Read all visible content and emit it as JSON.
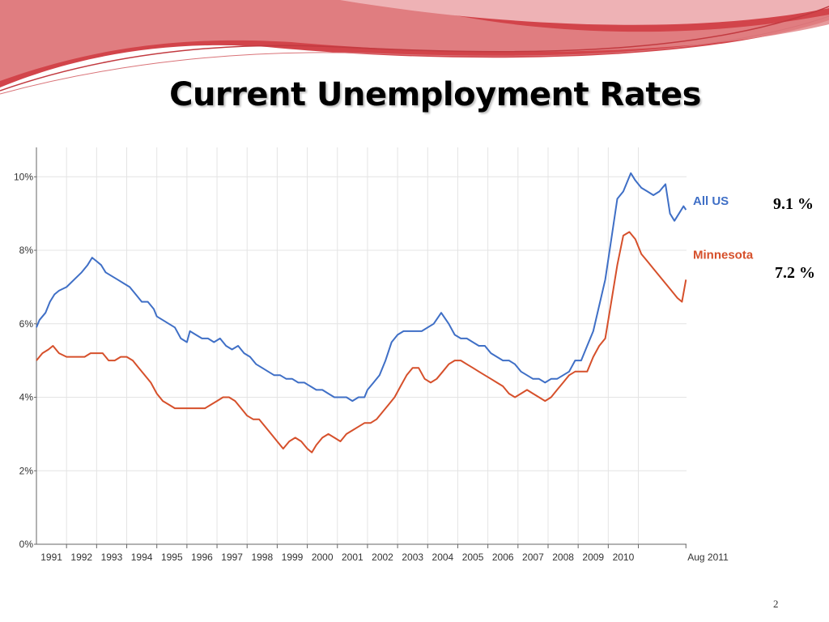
{
  "slide": {
    "title": "Current Unemployment Rates",
    "page_number": "2",
    "callouts": {
      "all_us": "9.1 %",
      "minnesota": "7.2 %"
    }
  },
  "colors": {
    "all_us": "#3f6fc6",
    "minnesota": "#d6502b",
    "banner_dark": "#d2444a",
    "banner_light": "#eeb2b5",
    "grid": "#e4e4e4"
  },
  "chart_data": {
    "type": "line",
    "title": "",
    "xlabel": "",
    "ylabel": "",
    "ylim": [
      0,
      10.8
    ],
    "xlim": [
      1990.0,
      2011.6
    ],
    "y_ticks": [
      {
        "value": 0,
        "label": "0%"
      },
      {
        "value": 2,
        "label": "2%"
      },
      {
        "value": 4,
        "label": "4%"
      },
      {
        "value": 6,
        "label": "6%"
      },
      {
        "value": 8,
        "label": "8%"
      },
      {
        "value": 10,
        "label": "10%"
      }
    ],
    "x_ticks": [
      {
        "value": 1991,
        "label": "1991"
      },
      {
        "value": 1992,
        "label": "1992"
      },
      {
        "value": 1993,
        "label": "1993"
      },
      {
        "value": 1994,
        "label": "1994"
      },
      {
        "value": 1995,
        "label": "1995"
      },
      {
        "value": 1996,
        "label": "1996"
      },
      {
        "value": 1997,
        "label": "1997"
      },
      {
        "value": 1998,
        "label": "1998"
      },
      {
        "value": 1999,
        "label": "1999"
      },
      {
        "value": 2000,
        "label": "2000"
      },
      {
        "value": 2001,
        "label": "2001"
      },
      {
        "value": 2002,
        "label": "2002"
      },
      {
        "value": 2003,
        "label": "2003"
      },
      {
        "value": 2004,
        "label": "2004"
      },
      {
        "value": 2005,
        "label": "2005"
      },
      {
        "value": 2006,
        "label": "2006"
      },
      {
        "value": 2007,
        "label": "2007"
      },
      {
        "value": 2008,
        "label": "2008"
      },
      {
        "value": 2009,
        "label": "2009"
      },
      {
        "value": 2010,
        "label": "2010"
      },
      {
        "value": 2011.58,
        "label": "Aug 2011"
      }
    ],
    "grid": true,
    "legend": "right, at series end",
    "series": [
      {
        "name": "All US",
        "points": [
          [
            1990.0,
            5.9
          ],
          [
            1990.1,
            6.1
          ],
          [
            1990.3,
            6.3
          ],
          [
            1990.45,
            6.6
          ],
          [
            1990.6,
            6.8
          ],
          [
            1990.75,
            6.9
          ],
          [
            1991.0,
            7.0
          ],
          [
            1991.25,
            7.2
          ],
          [
            1991.5,
            7.4
          ],
          [
            1991.7,
            7.6
          ],
          [
            1991.85,
            7.8
          ],
          [
            1992.0,
            7.7
          ],
          [
            1992.15,
            7.6
          ],
          [
            1992.3,
            7.4
          ],
          [
            1992.5,
            7.3
          ],
          [
            1992.7,
            7.2
          ],
          [
            1992.9,
            7.1
          ],
          [
            1993.1,
            7.0
          ],
          [
            1993.3,
            6.8
          ],
          [
            1993.5,
            6.6
          ],
          [
            1993.7,
            6.6
          ],
          [
            1993.9,
            6.4
          ],
          [
            1994.0,
            6.2
          ],
          [
            1994.2,
            6.1
          ],
          [
            1994.4,
            6.0
          ],
          [
            1994.6,
            5.9
          ],
          [
            1994.8,
            5.6
          ],
          [
            1995.0,
            5.5
          ],
          [
            1995.1,
            5.8
          ],
          [
            1995.3,
            5.7
          ],
          [
            1995.5,
            5.6
          ],
          [
            1995.7,
            5.6
          ],
          [
            1995.9,
            5.5
          ],
          [
            1996.1,
            5.6
          ],
          [
            1996.3,
            5.4
          ],
          [
            1996.5,
            5.3
          ],
          [
            1996.7,
            5.4
          ],
          [
            1996.9,
            5.2
          ],
          [
            1997.1,
            5.1
          ],
          [
            1997.3,
            4.9
          ],
          [
            1997.5,
            4.8
          ],
          [
            1997.7,
            4.7
          ],
          [
            1997.9,
            4.6
          ],
          [
            1998.1,
            4.6
          ],
          [
            1998.3,
            4.5
          ],
          [
            1998.5,
            4.5
          ],
          [
            1998.7,
            4.4
          ],
          [
            1998.9,
            4.4
          ],
          [
            1999.1,
            4.3
          ],
          [
            1999.3,
            4.2
          ],
          [
            1999.5,
            4.2
          ],
          [
            1999.7,
            4.1
          ],
          [
            1999.9,
            4.0
          ],
          [
            2000.1,
            4.0
          ],
          [
            2000.3,
            4.0
          ],
          [
            2000.5,
            3.9
          ],
          [
            2000.7,
            4.0
          ],
          [
            2000.9,
            4.0
          ],
          [
            2001.0,
            4.2
          ],
          [
            2001.2,
            4.4
          ],
          [
            2001.4,
            4.6
          ],
          [
            2001.6,
            5.0
          ],
          [
            2001.8,
            5.5
          ],
          [
            2002.0,
            5.7
          ],
          [
            2002.2,
            5.8
          ],
          [
            2002.4,
            5.8
          ],
          [
            2002.6,
            5.8
          ],
          [
            2002.8,
            5.8
          ],
          [
            2003.0,
            5.9
          ],
          [
            2003.2,
            6.0
          ],
          [
            2003.45,
            6.3
          ],
          [
            2003.7,
            6.0
          ],
          [
            2003.9,
            5.7
          ],
          [
            2004.1,
            5.6
          ],
          [
            2004.3,
            5.6
          ],
          [
            2004.5,
            5.5
          ],
          [
            2004.7,
            5.4
          ],
          [
            2004.9,
            5.4
          ],
          [
            2005.1,
            5.2
          ],
          [
            2005.3,
            5.1
          ],
          [
            2005.5,
            5.0
          ],
          [
            2005.7,
            5.0
          ],
          [
            2005.9,
            4.9
          ],
          [
            2006.1,
            4.7
          ],
          [
            2006.3,
            4.6
          ],
          [
            2006.5,
            4.5
          ],
          [
            2006.7,
            4.5
          ],
          [
            2006.9,
            4.4
          ],
          [
            2007.1,
            4.5
          ],
          [
            2007.3,
            4.5
          ],
          [
            2007.5,
            4.6
          ],
          [
            2007.7,
            4.7
          ],
          [
            2007.9,
            5.0
          ],
          [
            2008.1,
            5.0
          ],
          [
            2008.3,
            5.4
          ],
          [
            2008.5,
            5.8
          ],
          [
            2008.7,
            6.5
          ],
          [
            2008.9,
            7.2
          ],
          [
            2009.1,
            8.3
          ],
          [
            2009.3,
            9.4
          ],
          [
            2009.5,
            9.6
          ],
          [
            2009.75,
            10.1
          ],
          [
            2009.9,
            9.9
          ],
          [
            2010.1,
            9.7
          ],
          [
            2010.3,
            9.6
          ],
          [
            2010.5,
            9.5
          ],
          [
            2010.7,
            9.6
          ],
          [
            2010.9,
            9.8
          ],
          [
            2011.05,
            9.0
          ],
          [
            2011.2,
            8.8
          ],
          [
            2011.35,
            9.0
          ],
          [
            2011.5,
            9.2
          ],
          [
            2011.58,
            9.1
          ]
        ]
      },
      {
        "name": "Minnesota",
        "points": [
          [
            1990.0,
            5.0
          ],
          [
            1990.2,
            5.2
          ],
          [
            1990.4,
            5.3
          ],
          [
            1990.55,
            5.4
          ],
          [
            1990.75,
            5.2
          ],
          [
            1991.0,
            5.1
          ],
          [
            1991.3,
            5.1
          ],
          [
            1991.6,
            5.1
          ],
          [
            1991.8,
            5.2
          ],
          [
            1992.0,
            5.2
          ],
          [
            1992.2,
            5.2
          ],
          [
            1992.4,
            5.0
          ],
          [
            1992.6,
            5.0
          ],
          [
            1992.8,
            5.1
          ],
          [
            1993.0,
            5.1
          ],
          [
            1993.2,
            5.0
          ],
          [
            1993.4,
            4.8
          ],
          [
            1993.6,
            4.6
          ],
          [
            1993.8,
            4.4
          ],
          [
            1994.0,
            4.1
          ],
          [
            1994.2,
            3.9
          ],
          [
            1994.4,
            3.8
          ],
          [
            1994.6,
            3.7
          ],
          [
            1994.8,
            3.7
          ],
          [
            1995.0,
            3.7
          ],
          [
            1995.3,
            3.7
          ],
          [
            1995.6,
            3.7
          ],
          [
            1995.8,
            3.8
          ],
          [
            1996.0,
            3.9
          ],
          [
            1996.2,
            4.0
          ],
          [
            1996.4,
            4.0
          ],
          [
            1996.6,
            3.9
          ],
          [
            1996.8,
            3.7
          ],
          [
            1997.0,
            3.5
          ],
          [
            1997.2,
            3.4
          ],
          [
            1997.4,
            3.4
          ],
          [
            1997.6,
            3.2
          ],
          [
            1997.8,
            3.0
          ],
          [
            1998.0,
            2.8
          ],
          [
            1998.2,
            2.6
          ],
          [
            1998.4,
            2.8
          ],
          [
            1998.6,
            2.9
          ],
          [
            1998.8,
            2.8
          ],
          [
            1999.0,
            2.6
          ],
          [
            1999.15,
            2.5
          ],
          [
            1999.3,
            2.7
          ],
          [
            1999.5,
            2.9
          ],
          [
            1999.7,
            3.0
          ],
          [
            1999.9,
            2.9
          ],
          [
            2000.1,
            2.8
          ],
          [
            2000.3,
            3.0
          ],
          [
            2000.5,
            3.1
          ],
          [
            2000.7,
            3.2
          ],
          [
            2000.9,
            3.3
          ],
          [
            2001.1,
            3.3
          ],
          [
            2001.3,
            3.4
          ],
          [
            2001.5,
            3.6
          ],
          [
            2001.7,
            3.8
          ],
          [
            2001.9,
            4.0
          ],
          [
            2002.1,
            4.3
          ],
          [
            2002.3,
            4.6
          ],
          [
            2002.5,
            4.8
          ],
          [
            2002.7,
            4.8
          ],
          [
            2002.9,
            4.5
          ],
          [
            2003.1,
            4.4
          ],
          [
            2003.3,
            4.5
          ],
          [
            2003.5,
            4.7
          ],
          [
            2003.7,
            4.9
          ],
          [
            2003.9,
            5.0
          ],
          [
            2004.1,
            5.0
          ],
          [
            2004.3,
            4.9
          ],
          [
            2004.5,
            4.8
          ],
          [
            2004.7,
            4.7
          ],
          [
            2004.9,
            4.6
          ],
          [
            2005.1,
            4.5
          ],
          [
            2005.3,
            4.4
          ],
          [
            2005.5,
            4.3
          ],
          [
            2005.7,
            4.1
          ],
          [
            2005.9,
            4.0
          ],
          [
            2006.1,
            4.1
          ],
          [
            2006.3,
            4.2
          ],
          [
            2006.5,
            4.1
          ],
          [
            2006.7,
            4.0
          ],
          [
            2006.9,
            3.9
          ],
          [
            2007.1,
            4.0
          ],
          [
            2007.3,
            4.2
          ],
          [
            2007.5,
            4.4
          ],
          [
            2007.7,
            4.6
          ],
          [
            2007.9,
            4.7
          ],
          [
            2008.1,
            4.7
          ],
          [
            2008.3,
            4.7
          ],
          [
            2008.5,
            5.1
          ],
          [
            2008.7,
            5.4
          ],
          [
            2008.9,
            5.6
          ],
          [
            2009.1,
            6.6
          ],
          [
            2009.3,
            7.6
          ],
          [
            2009.5,
            8.4
          ],
          [
            2009.7,
            8.5
          ],
          [
            2009.9,
            8.3
          ],
          [
            2010.1,
            7.9
          ],
          [
            2010.3,
            7.7
          ],
          [
            2010.5,
            7.5
          ],
          [
            2010.7,
            7.3
          ],
          [
            2010.9,
            7.1
          ],
          [
            2011.1,
            6.9
          ],
          [
            2011.3,
            6.7
          ],
          [
            2011.45,
            6.6
          ],
          [
            2011.58,
            7.2
          ]
        ]
      }
    ]
  }
}
